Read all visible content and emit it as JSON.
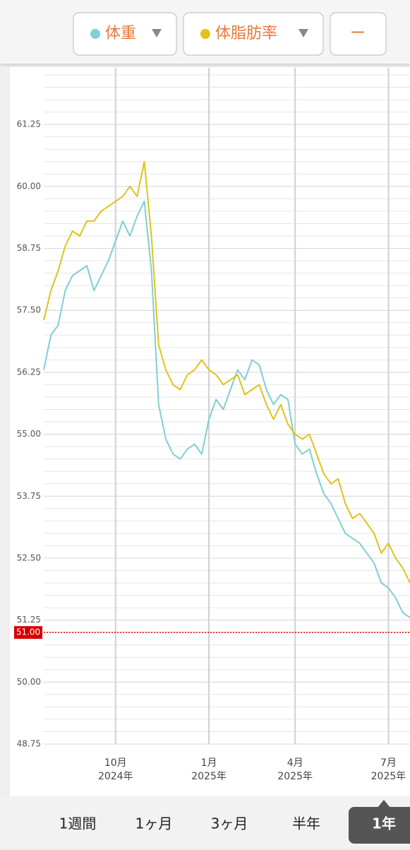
{
  "top_bar": {
    "extra_button": "ー"
  },
  "chart_data": {
    "type": "line",
    "series": [
      {
        "name": "体重",
        "color": "#7fcfd4",
        "values": [
          56.3,
          57.0,
          57.2,
          57.9,
          58.2,
          58.3,
          58.4,
          57.9,
          58.2,
          58.5,
          58.9,
          59.3,
          59.0,
          59.4,
          59.7,
          58.3,
          55.6,
          54.9,
          54.6,
          54.5,
          54.7,
          54.8,
          54.6,
          55.3,
          55.7,
          55.5,
          55.9,
          56.3,
          56.1,
          56.5,
          56.4,
          55.9,
          55.6,
          55.8,
          55.7,
          54.8,
          54.6,
          54.7,
          54.2,
          53.8,
          53.6,
          53.3,
          53.0,
          52.9,
          52.8,
          52.6,
          52.4,
          52.0,
          51.9,
          51.7,
          51.4,
          51.3
        ]
      },
      {
        "name": "体脂肪率",
        "color": "#e0c21a",
        "values": [
          57.3,
          57.9,
          58.3,
          58.8,
          59.1,
          59.0,
          59.3,
          59.3,
          59.5,
          59.6,
          59.7,
          59.8,
          60.0,
          59.8,
          60.5,
          59.0,
          56.8,
          56.3,
          56.0,
          55.9,
          56.2,
          56.3,
          56.5,
          56.3,
          56.2,
          56.0,
          56.1,
          56.2,
          55.8,
          55.9,
          56.0,
          55.6,
          55.3,
          55.6,
          55.2,
          55.0,
          54.9,
          55.0,
          54.6,
          54.2,
          54.0,
          54.1,
          53.6,
          53.3,
          53.4,
          53.2,
          53.0,
          52.6,
          52.8,
          52.5,
          52.3,
          52.0
        ]
      }
    ],
    "categories": [
      null,
      null,
      null,
      null,
      null,
      null,
      null,
      null,
      null,
      null,
      [
        "10月",
        "2024年"
      ],
      null,
      null,
      null,
      null,
      null,
      null,
      null,
      null,
      null,
      null,
      null,
      null,
      [
        "1月",
        "2025年"
      ],
      null,
      null,
      null,
      null,
      null,
      null,
      null,
      null,
      null,
      null,
      null,
      [
        "4月",
        "2025年"
      ],
      null,
      null,
      null,
      null,
      null,
      null,
      null,
      null,
      null,
      null,
      null,
      null,
      [
        "7月",
        "2025年"
      ],
      null,
      null,
      null
    ],
    "ylim": [
      48.75,
      62.25
    ],
    "yticks": [
      {
        "value": 48.75,
        "label": "48.75"
      },
      {
        "value": 50,
        "label": "50.00"
      },
      {
        "value": 51.25,
        "label": "51.25"
      },
      {
        "value": 52.5,
        "label": "52.50"
      },
      {
        "value": 53.75,
        "label": "53.75"
      },
      {
        "value": 55,
        "label": "55.00"
      },
      {
        "value": 56.25,
        "label": "56.25"
      },
      {
        "value": 57.5,
        "label": "57.50"
      },
      {
        "value": 58.75,
        "label": "58.75"
      },
      {
        "value": 60,
        "label": "60.00"
      },
      {
        "value": 61.25,
        "label": "61.25"
      }
    ],
    "minor_grid_step": 0.25,
    "grid": true,
    "reference_line": {
      "value": 51,
      "label": "51.00",
      "color": "#d40000"
    }
  },
  "periods": [
    {
      "label": "1週間",
      "selected": false
    },
    {
      "label": "1ヶ月",
      "selected": false
    },
    {
      "label": "3ヶ月",
      "selected": false
    },
    {
      "label": "半年",
      "selected": false
    },
    {
      "label": "1年",
      "selected": true
    }
  ]
}
